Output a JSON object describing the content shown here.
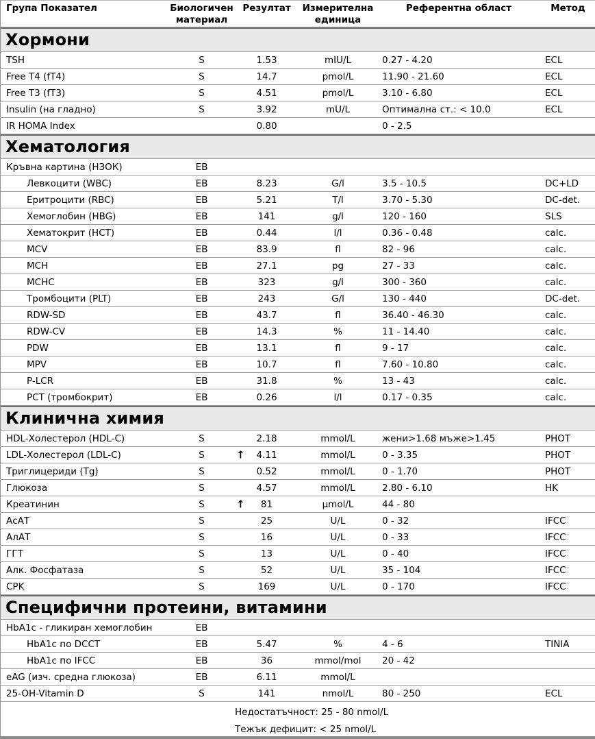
{
  "table": {
    "columns": [
      "Група Показател",
      "Биологичен материал",
      "Резултат",
      "Измерителна единица",
      "Референтна област",
      "Метод"
    ],
    "sections": [
      {
        "title": "Хормони",
        "rows": [
          {
            "name": "TSH",
            "indent": false,
            "material": "S",
            "result": "1.53",
            "flag": "",
            "unit": "mIU/L",
            "reference": "0.27 - 4.20",
            "method": "ECL"
          },
          {
            "name": "Free T4 (fT4)",
            "indent": false,
            "material": "S",
            "result": "14.7",
            "flag": "",
            "unit": "pmol/L",
            "reference": "11.90 - 21.60",
            "method": "ECL"
          },
          {
            "name": "Free T3 (fT3)",
            "indent": false,
            "material": "S",
            "result": "4.51",
            "flag": "",
            "unit": "pmol/L",
            "reference": "3.10 - 6.80",
            "method": "ECL"
          },
          {
            "name": "Insulin (на гладно)",
            "indent": false,
            "material": "S",
            "result": "3.92",
            "flag": "",
            "unit": "mU/L",
            "reference": "Оптимална ст.: < 10.0",
            "method": "ECL"
          },
          {
            "name": "IR HOMA Index",
            "indent": false,
            "material": "",
            "result": "0.80",
            "flag": "",
            "unit": "",
            "reference": "0 - 2.5",
            "method": ""
          }
        ]
      },
      {
        "title": "Хематология",
        "rows": [
          {
            "name": "Кръвна картина (НЗОК)",
            "indent": false,
            "material": "ЕВ",
            "result": "",
            "flag": "",
            "unit": "",
            "reference": "",
            "method": ""
          },
          {
            "name": "Левкоцити (WBC)",
            "indent": true,
            "material": "ЕВ",
            "result": "8.23",
            "flag": "",
            "unit": "G/l",
            "reference": "3.5 - 10.5",
            "method": "DC+LD"
          },
          {
            "name": "Еритроцити (RBC)",
            "indent": true,
            "material": "ЕВ",
            "result": "5.21",
            "flag": "",
            "unit": "T/l",
            "reference": "3.70 - 5.30",
            "method": "DC-det."
          },
          {
            "name": "Хемоглобин (HBG)",
            "indent": true,
            "material": "ЕВ",
            "result": "141",
            "flag": "",
            "unit": "g/l",
            "reference": "120 - 160",
            "method": "SLS"
          },
          {
            "name": "Хематокрит (HCT)",
            "indent": true,
            "material": "ЕВ",
            "result": "0.44",
            "flag": "",
            "unit": "l/l",
            "reference": "0.36 - 0.48",
            "method": "calc."
          },
          {
            "name": "MCV",
            "indent": true,
            "material": "ЕВ",
            "result": "83.9",
            "flag": "",
            "unit": "fl",
            "reference": "82 - 96",
            "method": "calc."
          },
          {
            "name": "MCH",
            "indent": true,
            "material": "ЕВ",
            "result": "27.1",
            "flag": "",
            "unit": "pg",
            "reference": "27 - 33",
            "method": "calc."
          },
          {
            "name": "MCHC",
            "indent": true,
            "material": "ЕВ",
            "result": "323",
            "flag": "",
            "unit": "g/l",
            "reference": "300 - 360",
            "method": "calc."
          },
          {
            "name": "Тромбоцити (PLT)",
            "indent": true,
            "material": "ЕВ",
            "result": "243",
            "flag": "",
            "unit": "G/l",
            "reference": "130 - 440",
            "method": "DC-det."
          },
          {
            "name": "RDW-SD",
            "indent": true,
            "material": "ЕВ",
            "result": "43.7",
            "flag": "",
            "unit": "fl",
            "reference": "36.40 - 46.30",
            "method": "calc."
          },
          {
            "name": "RDW-CV",
            "indent": true,
            "material": "ЕВ",
            "result": "14.3",
            "flag": "",
            "unit": "%",
            "reference": "11 - 14.40",
            "method": "calc."
          },
          {
            "name": "PDW",
            "indent": true,
            "material": "ЕВ",
            "result": "13.1",
            "flag": "",
            "unit": "fl",
            "reference": "9 - 17",
            "method": "calc."
          },
          {
            "name": "MPV",
            "indent": true,
            "material": "ЕВ",
            "result": "10.7",
            "flag": "",
            "unit": "fl",
            "reference": "7.60 - 10.80",
            "method": "calc."
          },
          {
            "name": "P-LCR",
            "indent": true,
            "material": "ЕВ",
            "result": "31.8",
            "flag": "",
            "unit": "%",
            "reference": "13 - 43",
            "method": "calc."
          },
          {
            "name": "PCT (тромбокрит)",
            "indent": true,
            "material": "ЕВ",
            "result": "0.26",
            "flag": "",
            "unit": "l/l",
            "reference": "0.17 - 0.35",
            "method": "calc."
          }
        ]
      },
      {
        "title": "Клинична химия",
        "rows": [
          {
            "name": "HDL-Холестерол (HDL-C)",
            "indent": false,
            "material": "S",
            "result": "2.18",
            "flag": "",
            "unit": "mmol/L",
            "reference": "жени>1.68 мъже>1.45",
            "method": "PHOT"
          },
          {
            "name": "LDL-Холестерол (LDL-C)",
            "indent": false,
            "material": "S",
            "result": "4.11",
            "flag": "high",
            "unit": "mmol/L",
            "reference": "0 - 3.35",
            "method": "PHOT"
          },
          {
            "name": "Триглицериди (Tg)",
            "indent": false,
            "material": "S",
            "result": "0.52",
            "flag": "",
            "unit": "mmol/L",
            "reference": "0 - 1.70",
            "method": "PHOT"
          },
          {
            "name": "Глюкоза",
            "indent": false,
            "material": "S",
            "result": "4.57",
            "flag": "",
            "unit": "mmol/L",
            "reference": "2.80 - 6.10",
            "method": "HK"
          },
          {
            "name": "Креатинин",
            "indent": false,
            "material": "S",
            "result": "81",
            "flag": "high",
            "unit": "µmol/L",
            "reference": "44 - 80",
            "method": ""
          },
          {
            "name": "АсАТ",
            "indent": false,
            "material": "S",
            "result": "25",
            "flag": "",
            "unit": "U/L",
            "reference": "0 - 32",
            "method": "IFCC"
          },
          {
            "name": "АлАТ",
            "indent": false,
            "material": "S",
            "result": "16",
            "flag": "",
            "unit": "U/L",
            "reference": "0 - 33",
            "method": "IFCC"
          },
          {
            "name": "ГГТ",
            "indent": false,
            "material": "S",
            "result": "13",
            "flag": "",
            "unit": "U/L",
            "reference": "0 - 40",
            "method": "IFCC"
          },
          {
            "name": "Алк. Фосфатаза",
            "indent": false,
            "material": "S",
            "result": "52",
            "flag": "",
            "unit": "U/L",
            "reference": "35 - 104",
            "method": "IFCC"
          },
          {
            "name": "CPK",
            "indent": false,
            "material": "S",
            "result": "169",
            "flag": "",
            "unit": "U/L",
            "reference": "0 - 170",
            "method": "IFCC"
          }
        ]
      },
      {
        "title": "Специфични протеини, витамини",
        "rows": [
          {
            "name": "HbA1c - гликиран хемоглобин",
            "indent": false,
            "material": "ЕВ",
            "result": "",
            "flag": "",
            "unit": "",
            "reference": "",
            "method": ""
          },
          {
            "name": "HbA1c по DCCT",
            "indent": true,
            "material": "ЕВ",
            "result": "5.47",
            "flag": "",
            "unit": "%",
            "reference": "4 - 6",
            "method": "TINIA"
          },
          {
            "name": "HbA1c по IFCC",
            "indent": true,
            "material": "ЕВ",
            "result": "36",
            "flag": "",
            "unit": "mmol/mol",
            "reference": "20 - 42",
            "method": ""
          },
          {
            "name": "eAG (изч. средна глюкоза)",
            "indent": false,
            "material": "ЕВ",
            "result": "6.11",
            "flag": "",
            "unit": "mmol/L",
            "reference": "",
            "method": ""
          },
          {
            "name": "25-OH-Vitamin D",
            "indent": false,
            "material": "S",
            "result": "141",
            "flag": "",
            "unit": "nmol/L",
            "reference": "80 - 250",
            "method": "ECL"
          }
        ]
      }
    ],
    "footer": {
      "notes": [
        "Недостатъчност: 25 - 80 nmol/L",
        "Тежък дефицит: < 25 nmol/L"
      ]
    }
  },
  "icons": {
    "high_flag": "↑"
  },
  "colors": {
    "section_background": "#e9e9e9",
    "row_border": "#9a9a9a",
    "section_top_border": "#6e6e6e",
    "text": "#000000"
  }
}
